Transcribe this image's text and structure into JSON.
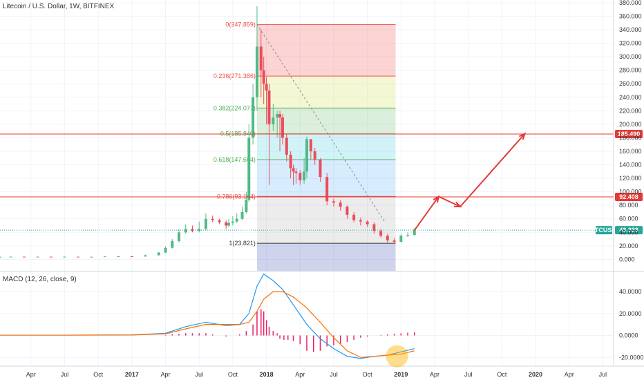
{
  "header": {
    "title": "Litecoin / U.S. Dollar, 1W, BITFINEX",
    "macd_title": "MACD (12, 26, close, 9)"
  },
  "colors": {
    "up": "#53b987",
    "down": "#eb4d5c",
    "fib_red": "#ef5350",
    "fib_green": "#4caf50",
    "fib_blue": "#2196f3",
    "macd": "#2196f3",
    "signal": "#ff6d00",
    "hist": "#e91e63",
    "hline": "#e53935",
    "arrow": "#e53935",
    "price_tag": "#26a69a"
  },
  "chart_data": [
    {
      "type": "candlestick",
      "title": "Litecoin / U.S. Dollar, 1W, BITFINEX",
      "y_ticks": [
        "380.000",
        "360.000",
        "340.000",
        "320.000",
        "300.000",
        "280.000",
        "260.000",
        "240.000",
        "220.000",
        "200.000",
        "180.000",
        "160.000",
        "140.000",
        "120.000",
        "100.000",
        "80.000",
        "60.000",
        "40.000",
        "20.000",
        "0.000"
      ],
      "y_tick_values": [
        380,
        360,
        340,
        320,
        300,
        280,
        260,
        240,
        220,
        200,
        180,
        160,
        140,
        120,
        100,
        80,
        60,
        40,
        20,
        0
      ],
      "ylim": [
        -17,
        384
      ],
      "x_ticks": [
        "Apr",
        "Jul",
        "Oct",
        "2017",
        "Apr",
        "Jul",
        "Oct",
        "2018",
        "Apr",
        "Jul",
        "Oct",
        "2019",
        "Apr",
        "Jul",
        "Oct",
        "2020",
        "Apr",
        "Jul"
      ],
      "x_tick_bold": [
        false,
        false,
        false,
        true,
        false,
        false,
        false,
        true,
        false,
        false,
        false,
        true,
        false,
        false,
        false,
        true,
        false,
        false
      ],
      "x_tick_values": [
        2016.25,
        2016.5,
        2016.75,
        2017.0,
        2017.25,
        2017.5,
        2017.75,
        2018.0,
        2018.25,
        2018.5,
        2018.75,
        2019.0,
        2019.25,
        2019.5,
        2019.75,
        2020.0,
        2020.25,
        2020.5
      ],
      "xlim": [
        2016.02,
        2020.58
      ],
      "series": [
        {
          "x": [
            2016.02,
            2016.1,
            2016.2,
            2016.3,
            2016.4,
            2016.5,
            2016.6,
            2016.7,
            2016.8,
            2016.9,
            2017.0,
            2017.1,
            2017.2,
            2017.25,
            2017.3,
            2017.35,
            2017.4,
            2017.45,
            2017.5,
            2017.55,
            2017.6,
            2017.65,
            2017.7,
            2017.72,
            2017.75,
            2017.78,
            2017.82,
            2017.85,
            2017.87,
            2017.9,
            2017.93,
            2017.96,
            2017.98,
            2018.0,
            2018.02,
            2018.05,
            2018.08,
            2018.1,
            2018.12,
            2018.15,
            2018.18,
            2018.2,
            2018.22,
            2018.25,
            2018.28,
            2018.3,
            2018.33,
            2018.36,
            2018.4,
            2018.45,
            2018.5,
            2018.55,
            2018.6,
            2018.65,
            2018.7,
            2018.75,
            2018.8,
            2018.85,
            2018.9,
            2018.95,
            2019.0,
            2019.05,
            2019.1
          ],
          "open": [
            3.5,
            3.8,
            3.9,
            3.7,
            3.9,
            3.8,
            3.9,
            3.8,
            3.8,
            4.3,
            4.5,
            4.2,
            6,
            10,
            17,
            27,
            40,
            45,
            42,
            45,
            60,
            58,
            55,
            50,
            54,
            56,
            60,
            70,
            88,
            180,
            240,
            315,
            280,
            260,
            250,
            200,
            210,
            215,
            210,
            180,
            155,
            135,
            130,
            128,
            117,
            130,
            178,
            160,
            148,
            122,
            86,
            84,
            78,
            66,
            58,
            56,
            52,
            42,
            35,
            28,
            26,
            35,
            36
          ],
          "close": [
            3.8,
            3.9,
            3.7,
            3.9,
            3.8,
            3.9,
            3.8,
            3.8,
            4.3,
            4.5,
            4.2,
            6,
            10,
            17,
            27,
            40,
            45,
            42,
            45,
            60,
            58,
            55,
            50,
            54,
            56,
            60,
            70,
            88,
            180,
            240,
            315,
            280,
            260,
            250,
            200,
            210,
            215,
            210,
            180,
            155,
            135,
            130,
            128,
            117,
            130,
            178,
            160,
            148,
            122,
            86,
            84,
            78,
            66,
            58,
            56,
            52,
            42,
            35,
            28,
            26,
            35,
            36,
            44
          ],
          "high": [
            4,
            4,
            4,
            4,
            4,
            4,
            4,
            4,
            4.5,
            5,
            5,
            7,
            11,
            19,
            30,
            45,
            52,
            50,
            56,
            68,
            65,
            60,
            58,
            60,
            64,
            68,
            78,
            100,
            200,
            260,
            375,
            340,
            300,
            270,
            260,
            230,
            220,
            220,
            215,
            185,
            160,
            140,
            135,
            132,
            150,
            182,
            178,
            165,
            150,
            128,
            90,
            88,
            80,
            70,
            62,
            58,
            55,
            45,
            38,
            32,
            38,
            40,
            46
          ],
          "low": [
            3.3,
            3.6,
            3.5,
            3.5,
            3.6,
            3.6,
            3.6,
            3.6,
            3.7,
            4.1,
            4,
            4.1,
            5.8,
            9.5,
            16,
            25,
            38,
            40,
            40,
            43,
            55,
            52,
            45,
            48,
            50,
            54,
            58,
            68,
            85,
            170,
            220,
            240,
            230,
            200,
            110,
            190,
            180,
            160,
            170,
            145,
            120,
            110,
            112,
            110,
            112,
            120,
            148,
            140,
            115,
            80,
            78,
            72,
            60,
            55,
            50,
            48,
            38,
            32,
            25,
            23,
            25,
            33,
            35
          ]
        }
      ],
      "fib_levels": [
        {
          "label": "0(347.859)",
          "value": 347.859,
          "color": "#ef5350"
        },
        {
          "label": "0.236(271.386)",
          "value": 271.386,
          "color": "#ef5350"
        },
        {
          "label": "0.382(224.077)",
          "value": 224.077,
          "color": "#4caf50"
        },
        {
          "label": "0.5(185.840)",
          "value": 185.84,
          "color": "#4caf50"
        },
        {
          "label": "0.618(147.604)",
          "value": 147.604,
          "color": "#4caf50"
        },
        {
          "label": "0.786(93.164)",
          "value": 93.164,
          "color": "#ef5350"
        },
        {
          "label": "1(23.821)",
          "value": 23.821,
          "color": "#333333"
        }
      ],
      "fib_x_range": [
        2017.93,
        2018.96
      ],
      "horizontal_lines": [
        {
          "value": 185.49,
          "label": "185.490"
        },
        {
          "value": 92.408,
          "label": "92.408"
        }
      ],
      "price_tag": {
        "symbol": "LTCUSD",
        "value": 43.223,
        "label": "43.223"
      },
      "arrow_path": {
        "x": [
          2019.1,
          2019.28,
          2019.44,
          2019.92
        ],
        "y": [
          43,
          93,
          78,
          186
        ]
      }
    },
    {
      "type": "line",
      "title": "MACD (12, 26, close, 9)",
      "y_ticks": [
        "40.0000",
        "20.0000",
        "0.0000",
        "-20.0000"
      ],
      "y_tick_values": [
        40,
        20,
        0,
        -20
      ],
      "ylim": [
        -28,
        57
      ],
      "series": [
        {
          "name": "MACD",
          "x": [
            2016.02,
            2016.5,
            2017.0,
            2017.25,
            2017.4,
            2017.55,
            2017.7,
            2017.8,
            2017.87,
            2017.93,
            2017.98,
            2018.05,
            2018.12,
            2018.2,
            2018.3,
            2018.4,
            2018.5,
            2018.6,
            2018.7,
            2018.8,
            2018.9,
            2019.0,
            2019.1
          ],
          "y": [
            0.3,
            0.3,
            0.5,
            2,
            8,
            12,
            9,
            10,
            20,
            45,
            56,
            50,
            42,
            28,
            10,
            -3,
            -12,
            -19,
            -21,
            -19,
            -18,
            -15,
            -12
          ]
        },
        {
          "name": "Signal",
          "x": [
            2016.02,
            2016.5,
            2017.0,
            2017.25,
            2017.4,
            2017.55,
            2017.7,
            2017.8,
            2017.87,
            2017.93,
            2017.98,
            2018.05,
            2018.12,
            2018.2,
            2018.3,
            2018.4,
            2018.5,
            2018.6,
            2018.7,
            2018.8,
            2018.9,
            2019.0,
            2019.1
          ],
          "y": [
            0.3,
            0.3,
            0.4,
            1.5,
            6,
            10,
            10,
            10,
            12,
            22,
            33,
            40,
            40,
            35,
            25,
            12,
            -2,
            -14,
            -20,
            -19,
            -18,
            -17,
            -14
          ]
        }
      ],
      "histogram": {
        "x": [
          2017.25,
          2017.3,
          2017.35,
          2017.4,
          2017.45,
          2017.5,
          2017.55,
          2017.6,
          2017.65,
          2017.7,
          2017.75,
          2017.8,
          2017.85,
          2017.9,
          2017.93,
          2017.96,
          2017.98,
          2018.0,
          2018.02,
          2018.05,
          2018.08,
          2018.1,
          2018.13,
          2018.16,
          2018.2,
          2018.25,
          2018.3,
          2018.35,
          2018.4,
          2018.45,
          2018.5,
          2018.55,
          2018.6,
          2018.65,
          2018.7,
          2018.75,
          2018.8,
          2018.85,
          2018.9,
          2018.95,
          2019.0,
          2019.05,
          2019.1
        ],
        "y": [
          0.5,
          1,
          1.5,
          2,
          2,
          2,
          2,
          1,
          0,
          -1,
          0,
          1,
          4,
          10,
          22,
          24,
          22,
          14,
          8,
          4,
          2,
          -3,
          -4,
          -4,
          -5,
          -8,
          -14,
          -15,
          -14,
          -10,
          -9,
          -8,
          -6,
          -4,
          -2,
          -1,
          0,
          0.5,
          1,
          1.5,
          2,
          2.5,
          3
        ]
      }
    }
  ]
}
